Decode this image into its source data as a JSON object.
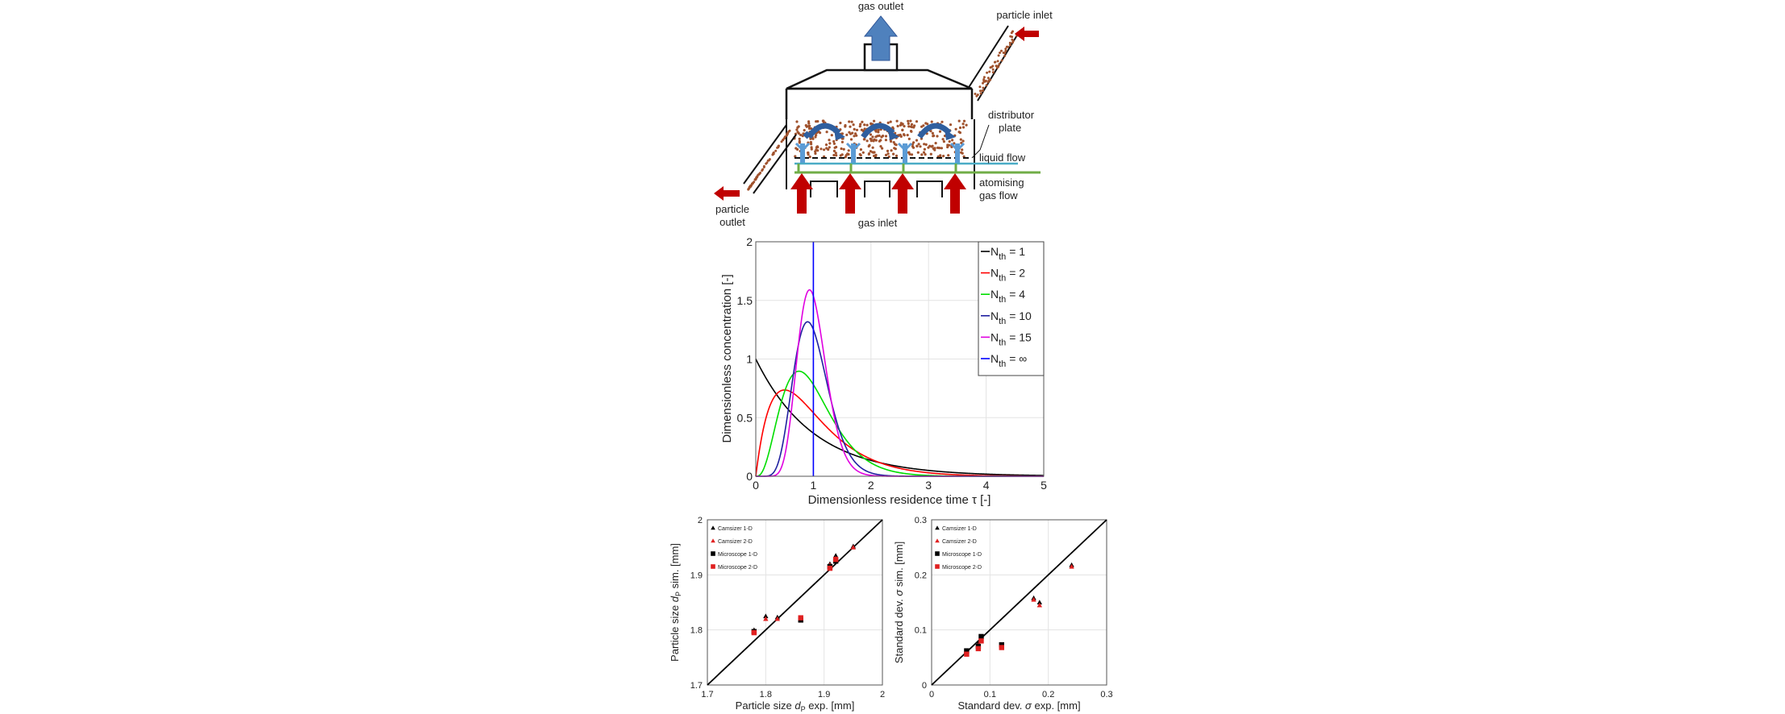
{
  "schematic": {
    "labels": {
      "gas_outlet": "gas outlet",
      "particle_inlet": "particle inlet",
      "distributor_plate_1": "distributor",
      "distributor_plate_2": "plate",
      "liquid_flow": "liquid flow",
      "atomising_1": "atomising",
      "atomising_2": "gas flow",
      "particle_outlet_1": "particle",
      "particle_outlet_2": "outlet",
      "gas_inlet": "gas inlet"
    },
    "colors": {
      "arrow_red": "#c00000",
      "arrow_blue": "#4f81bd",
      "particles": "#a0522d",
      "liquid": "#4bacc6",
      "green": "#70ad47"
    }
  },
  "chart_data": [
    {
      "type": "line",
      "xlabel": "Dimensionless residence time τ [-]",
      "ylabel": "Dimensionless concentration [-]",
      "xlim": [
        0,
        5
      ],
      "ylim": [
        0,
        2
      ],
      "xticks": [
        "0",
        "1",
        "2",
        "3",
        "4",
        "5"
      ],
      "yticks": [
        "0",
        "0.5",
        "1",
        "1.5",
        "2"
      ],
      "grid": true,
      "legend_position": "top-right",
      "series": [
        {
          "name": "1",
          "N": 1,
          "color": "#000000"
        },
        {
          "name": "2",
          "N": 2,
          "color": "#ff0000"
        },
        {
          "name": "4",
          "N": 4,
          "color": "#00dd00"
        },
        {
          "name": "10",
          "N": 10,
          "color": "#2020a0"
        },
        {
          "name": "15",
          "N": 15,
          "color": "#e000e0"
        },
        {
          "name": "∞",
          "N": "inf",
          "color": "#0000ff"
        }
      ],
      "legend_prefix": "N",
      "legend_sub": "th",
      "legend_eq": " = "
    },
    {
      "type": "scatter",
      "xlabel_pre": "Particle size ",
      "xlabel_sym": "d",
      "xlabel_sub": "P",
      "xlabel_post": " exp. [mm]",
      "ylabel_pre": "Particle size ",
      "ylabel_sym": "d",
      "ylabel_sub": "P",
      "ylabel_post": " sim. [mm]",
      "xlim": [
        1.7,
        2.0
      ],
      "ylim": [
        1.7,
        2.0
      ],
      "xticks": [
        "1.7",
        "1.8",
        "1.9",
        "2"
      ],
      "yticks": [
        "1.7",
        "1.8",
        "1.9",
        "2"
      ],
      "grid": true,
      "legend_position": "top-left",
      "legend": [
        "Camsizer 1-D",
        "Camsizer 2-D",
        "Microscope 1-D",
        "Microscope 2-D"
      ],
      "series": [
        {
          "name": "Camsizer 1-D",
          "marker": "triangle",
          "color": "#000000",
          "points": [
            [
              1.78,
              1.8
            ],
            [
              1.8,
              1.825
            ],
            [
              1.82,
              1.823
            ],
            [
              1.86,
              1.82
            ],
            [
              1.91,
              1.92
            ],
            [
              1.92,
              1.935
            ],
            [
              1.95,
              1.952
            ]
          ]
        },
        {
          "name": "Camsizer 2-D",
          "marker": "triangle",
          "color": "#e02020",
          "points": [
            [
              1.78,
              1.798
            ],
            [
              1.8,
              1.82
            ],
            [
              1.82,
              1.82
            ],
            [
              1.86,
              1.822
            ],
            [
              1.91,
              1.918
            ],
            [
              1.92,
              1.93
            ],
            [
              1.95,
              1.95
            ]
          ]
        },
        {
          "name": "Microscope 1-D",
          "marker": "square",
          "color": "#000000",
          "points": [
            [
              1.78,
              1.797
            ],
            [
              1.86,
              1.818
            ],
            [
              1.91,
              1.915
            ],
            [
              1.92,
              1.925
            ]
          ]
        },
        {
          "name": "Microscope 2-D",
          "marker": "square",
          "color": "#e02020",
          "points": [
            [
              1.78,
              1.795
            ],
            [
              1.86,
              1.822
            ],
            [
              1.91,
              1.912
            ],
            [
              1.92,
              1.928
            ]
          ]
        }
      ]
    },
    {
      "type": "scatter",
      "xlabel_pre": "Standard dev. ",
      "xlabel_sym": "σ",
      "xlabel_sub": "",
      "xlabel_post": " exp. [mm]",
      "ylabel_pre": "Standard dev. ",
      "ylabel_sym": "σ",
      "ylabel_sub": "",
      "ylabel_post": " sim. [mm]",
      "xlim": [
        0,
        0.3
      ],
      "ylim": [
        0,
        0.3
      ],
      "xticks": [
        "0",
        "0.1",
        "0.2",
        "0.3"
      ],
      "yticks": [
        "0",
        "0.1",
        "0.2",
        "0.3"
      ],
      "grid": true,
      "legend_position": "top-left",
      "legend": [
        "Camsizer 1-D",
        "Camsizer 2-D",
        "Microscope 1-D",
        "Microscope 2-D"
      ],
      "series": [
        {
          "name": "Camsizer 1-D",
          "marker": "triangle",
          "color": "#000000",
          "points": [
            [
              0.06,
              0.06
            ],
            [
              0.08,
              0.075
            ],
            [
              0.085,
              0.085
            ],
            [
              0.12,
              0.072
            ],
            [
              0.175,
              0.158
            ],
            [
              0.185,
              0.15
            ],
            [
              0.24,
              0.218
            ]
          ]
        },
        {
          "name": "Camsizer 2-D",
          "marker": "triangle",
          "color": "#e02020",
          "points": [
            [
              0.06,
              0.058
            ],
            [
              0.08,
              0.072
            ],
            [
              0.085,
              0.082
            ],
            [
              0.12,
              0.07
            ],
            [
              0.175,
              0.155
            ],
            [
              0.185,
              0.145
            ],
            [
              0.24,
              0.215
            ]
          ]
        },
        {
          "name": "Microscope 1-D",
          "marker": "square",
          "color": "#000000",
          "points": [
            [
              0.06,
              0.062
            ],
            [
              0.08,
              0.07
            ],
            [
              0.085,
              0.088
            ],
            [
              0.12,
              0.073
            ]
          ]
        },
        {
          "name": "Microscope 2-D",
          "marker": "square",
          "color": "#e02020",
          "points": [
            [
              0.06,
              0.056
            ],
            [
              0.08,
              0.066
            ],
            [
              0.085,
              0.08
            ],
            [
              0.12,
              0.068
            ]
          ]
        }
      ]
    }
  ]
}
